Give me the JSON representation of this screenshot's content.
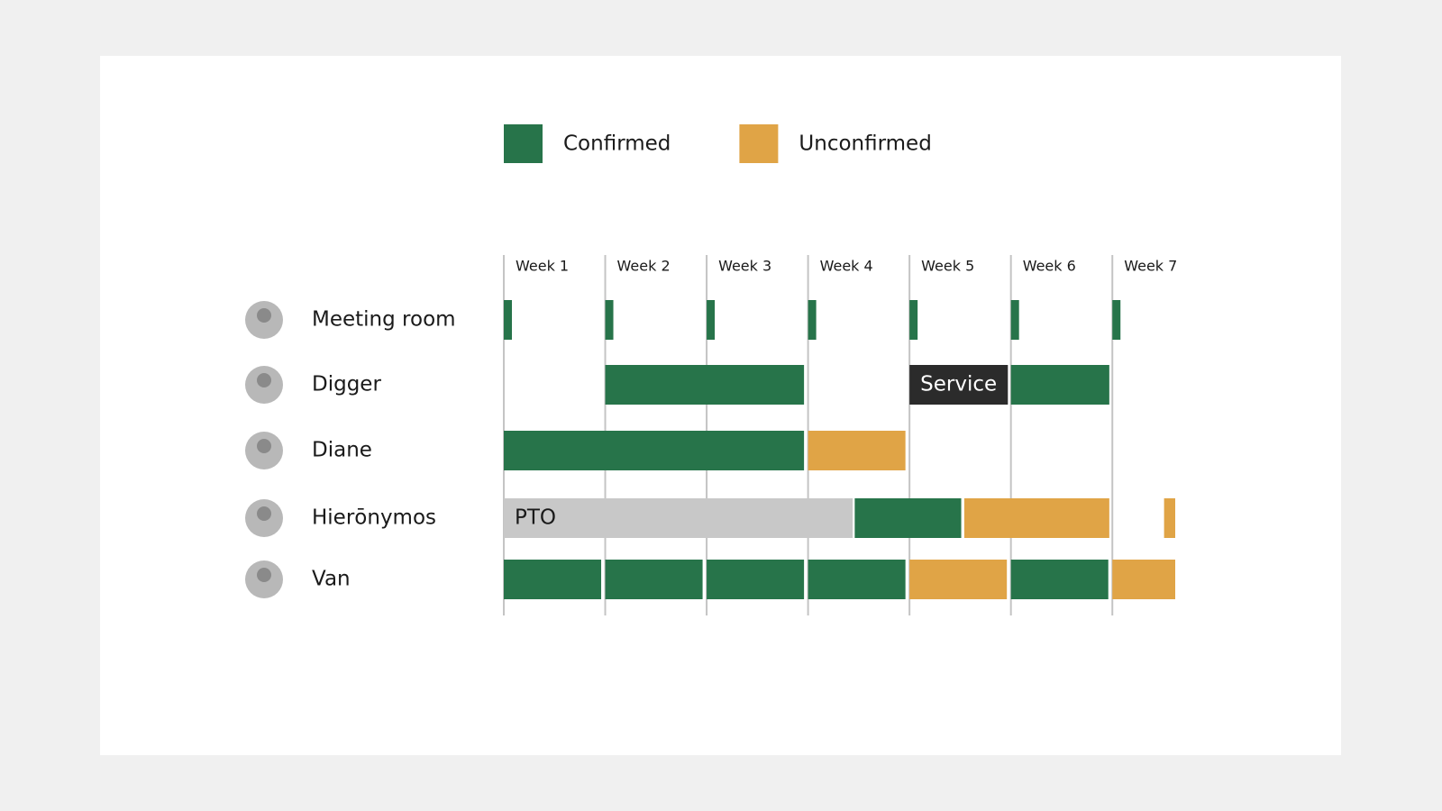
{
  "chart_data": {
    "type": "timeline",
    "series": [
      {
        "name": "Confirmed",
        "color": "#27744a"
      },
      {
        "name": "Unconfirmed",
        "color": "#e0a446"
      }
    ],
    "xticks": [
      {
        "value": 0,
        "label": "Week 1"
      },
      {
        "value": 1,
        "label": "Week 2"
      },
      {
        "value": 2,
        "label": "Week 3"
      },
      {
        "value": 3,
        "label": "Week 4"
      },
      {
        "value": 4,
        "label": "Week 5"
      },
      {
        "value": 5,
        "label": "Week 6"
      },
      {
        "value": 6,
        "label": "Week 7"
      }
    ],
    "xlim": [
      0,
      6.62
    ],
    "rows": [
      {
        "name": "Meeting room",
        "bars": [
          {
            "start": 0,
            "end": 0.08,
            "series": 0
          },
          {
            "start": 1,
            "end": 1.08,
            "series": 0
          },
          {
            "start": 2,
            "end": 2.08,
            "series": 0
          },
          {
            "start": 3,
            "end": 3.08,
            "series": 0
          },
          {
            "start": 4,
            "end": 4.08,
            "series": 0
          },
          {
            "start": 5,
            "end": 5.08,
            "series": 0
          },
          {
            "start": 6,
            "end": 6.08,
            "series": 0
          }
        ]
      },
      {
        "name": "Digger",
        "bars": [
          {
            "start": 1,
            "end": 2.96,
            "series": 0
          },
          {
            "start": 4,
            "end": 4.97,
            "label": "Service",
            "color": "#2b2b2b",
            "text_color": "#ffffff"
          },
          {
            "start": 5,
            "end": 5.97,
            "series": 0
          }
        ]
      },
      {
        "name": "Diane",
        "bars": [
          {
            "start": 0,
            "end": 2.96,
            "series": 0
          },
          {
            "start": 3,
            "end": 3.96,
            "series": 1
          }
        ]
      },
      {
        "name": "Hierōnymos",
        "bars": [
          {
            "start": 0,
            "end": 3.44,
            "label": "PTO",
            "color": "#c8c8c8",
            "text_color": "#1a1a1a"
          },
          {
            "start": 3.46,
            "end": 4.51,
            "series": 0
          },
          {
            "start": 4.54,
            "end": 5.97,
            "series": 1
          },
          {
            "start": 6.51,
            "end": 6.62,
            "series": 1
          }
        ]
      },
      {
        "name": "Van",
        "bars": [
          {
            "start": 0,
            "end": 0.96,
            "series": 0
          },
          {
            "start": 1,
            "end": 1.96,
            "series": 0
          },
          {
            "start": 2,
            "end": 2.96,
            "series": 0
          },
          {
            "start": 3,
            "end": 3.96,
            "series": 0
          },
          {
            "start": 4,
            "end": 4.96,
            "series": 1
          },
          {
            "start": 5,
            "end": 5.96,
            "series": 0
          },
          {
            "start": 6,
            "end": 6.62,
            "series": 1
          }
        ]
      }
    ]
  }
}
